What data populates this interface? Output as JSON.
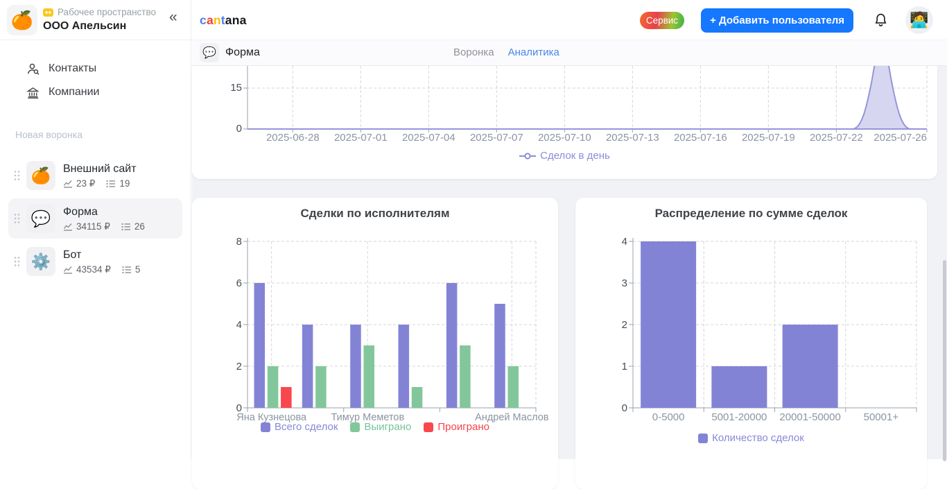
{
  "sidebar": {
    "collapse_icon": "«",
    "workspace": {
      "logo_emoji": "🍊",
      "label": "Рабочее пространство",
      "name": "ООО Апельсин"
    },
    "nav": [
      {
        "label": "Контакты",
        "icon": "user-search-icon"
      },
      {
        "label": "Компании",
        "icon": "bank-icon"
      }
    ],
    "section_label": "Новая воронка",
    "funnels": [
      {
        "emoji": "🍊",
        "title": "Внешний сайт",
        "amount": "23 ₽",
        "count": "19",
        "selected": false
      },
      {
        "emoji": "💬",
        "title": "Форма",
        "amount": "34115 ₽",
        "count": "26",
        "selected": true
      },
      {
        "emoji": "⚙️",
        "title": "Бот",
        "amount": "43534 ₽",
        "count": "5",
        "selected": false
      }
    ]
  },
  "header": {
    "logo_parts": [
      {
        "text": "c",
        "color": "#4e7cf0"
      },
      {
        "text": "a",
        "color": "#ee4335"
      },
      {
        "text": "n",
        "color": "#fcbc12"
      },
      {
        "text": "t",
        "color": "#4e7cf0"
      },
      {
        "text": "ana",
        "color": "#16181c"
      }
    ],
    "service_button": "Сервис",
    "add_user_button": "+ Добавить пользователя",
    "avatar_emoji": "🧑‍💻"
  },
  "subheader": {
    "icon_emoji": "💬",
    "title": "Форма",
    "tabs": [
      {
        "label": "Воронка",
        "active": false
      },
      {
        "label": "Аналитика",
        "active": true
      }
    ]
  },
  "chart_data": [
    {
      "id": "daily",
      "type": "area",
      "series_name": "Сделок в день",
      "legend": {
        "label": "Сделок в день",
        "color": "#8c8cd9"
      },
      "x_axis": {
        "start": "2025-06-26",
        "end": "2025-07-26",
        "tick_labels": [
          "2025-06-28",
          "2025-07-01",
          "2025-07-04",
          "2025-07-07",
          "2025-07-10",
          "2025-07-13",
          "2025-07-16",
          "2025-07-19",
          "2025-07-22",
          "2025-07-26"
        ]
      },
      "y_axis": {
        "visible_ticks": [
          0,
          15
        ],
        "clipped_above": 23
      },
      "baseline_value": 0,
      "points": [
        {
          "date": "2025-07-24",
          "value": 26
        }
      ],
      "line_color": "#9595da",
      "fill_color": "#d6d6f0"
    },
    {
      "id": "performers",
      "type": "bar",
      "title": "Сделки по исполнителям",
      "n_categories": 6,
      "x_labels": [
        {
          "category_index": 0,
          "label": "Яна Кузнецова"
        },
        {
          "category_index": 2,
          "label": "Тимур Меметов"
        },
        {
          "category_index": 5,
          "label": "Андрей Маслов"
        }
      ],
      "series": [
        {
          "name": "Всего сделок",
          "color": "#8383d6",
          "text_color": "#8888d8",
          "values": [
            6,
            4,
            4,
            4,
            6,
            5
          ]
        },
        {
          "name": "Выиграно",
          "color": "#82c79b",
          "text_color": "#74c397",
          "values": [
            2,
            2,
            3,
            1,
            3,
            2
          ]
        },
        {
          "name": "Проиграно",
          "color": "#f9474e",
          "text_color": "#f4434b",
          "values": [
            1,
            0,
            0,
            0,
            0,
            0
          ]
        }
      ],
      "y_ticks": [
        0,
        2,
        4,
        6,
        8
      ],
      "ylim": [
        0,
        8
      ],
      "grid": true,
      "legend_position": "bottom"
    },
    {
      "id": "amounts",
      "type": "bar",
      "title": "Распределение по сумме сделок",
      "categories": [
        "0-5000",
        "5001-20000",
        "20001-50000",
        "50001+"
      ],
      "series": [
        {
          "name": "Количество сделок",
          "color": "#8383d6",
          "text_color": "#8888d8",
          "values": [
            4,
            1,
            2,
            0
          ]
        }
      ],
      "y_ticks": [
        0,
        1,
        2,
        3,
        4
      ],
      "ylim": [
        0,
        4
      ],
      "grid": true,
      "legend_position": "bottom"
    }
  ]
}
